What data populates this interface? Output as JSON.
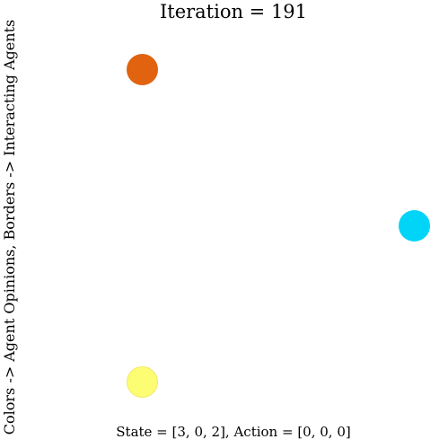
{
  "title": "Iteration = 191",
  "ylabel": "Colors -> Agent Opinions, Borders -> Interacting Agents",
  "footer": "State = [3, 0, 2], Action = [0, 0, 0]",
  "agents": [
    {
      "name": "agent-orange",
      "color": "#e1620f",
      "border": "none"
    },
    {
      "name": "agent-cyan",
      "color": "#00d5f7",
      "border": "none"
    },
    {
      "name": "agent-yellow",
      "color": "#fdfd74",
      "border": "#f2ea63"
    }
  ]
}
